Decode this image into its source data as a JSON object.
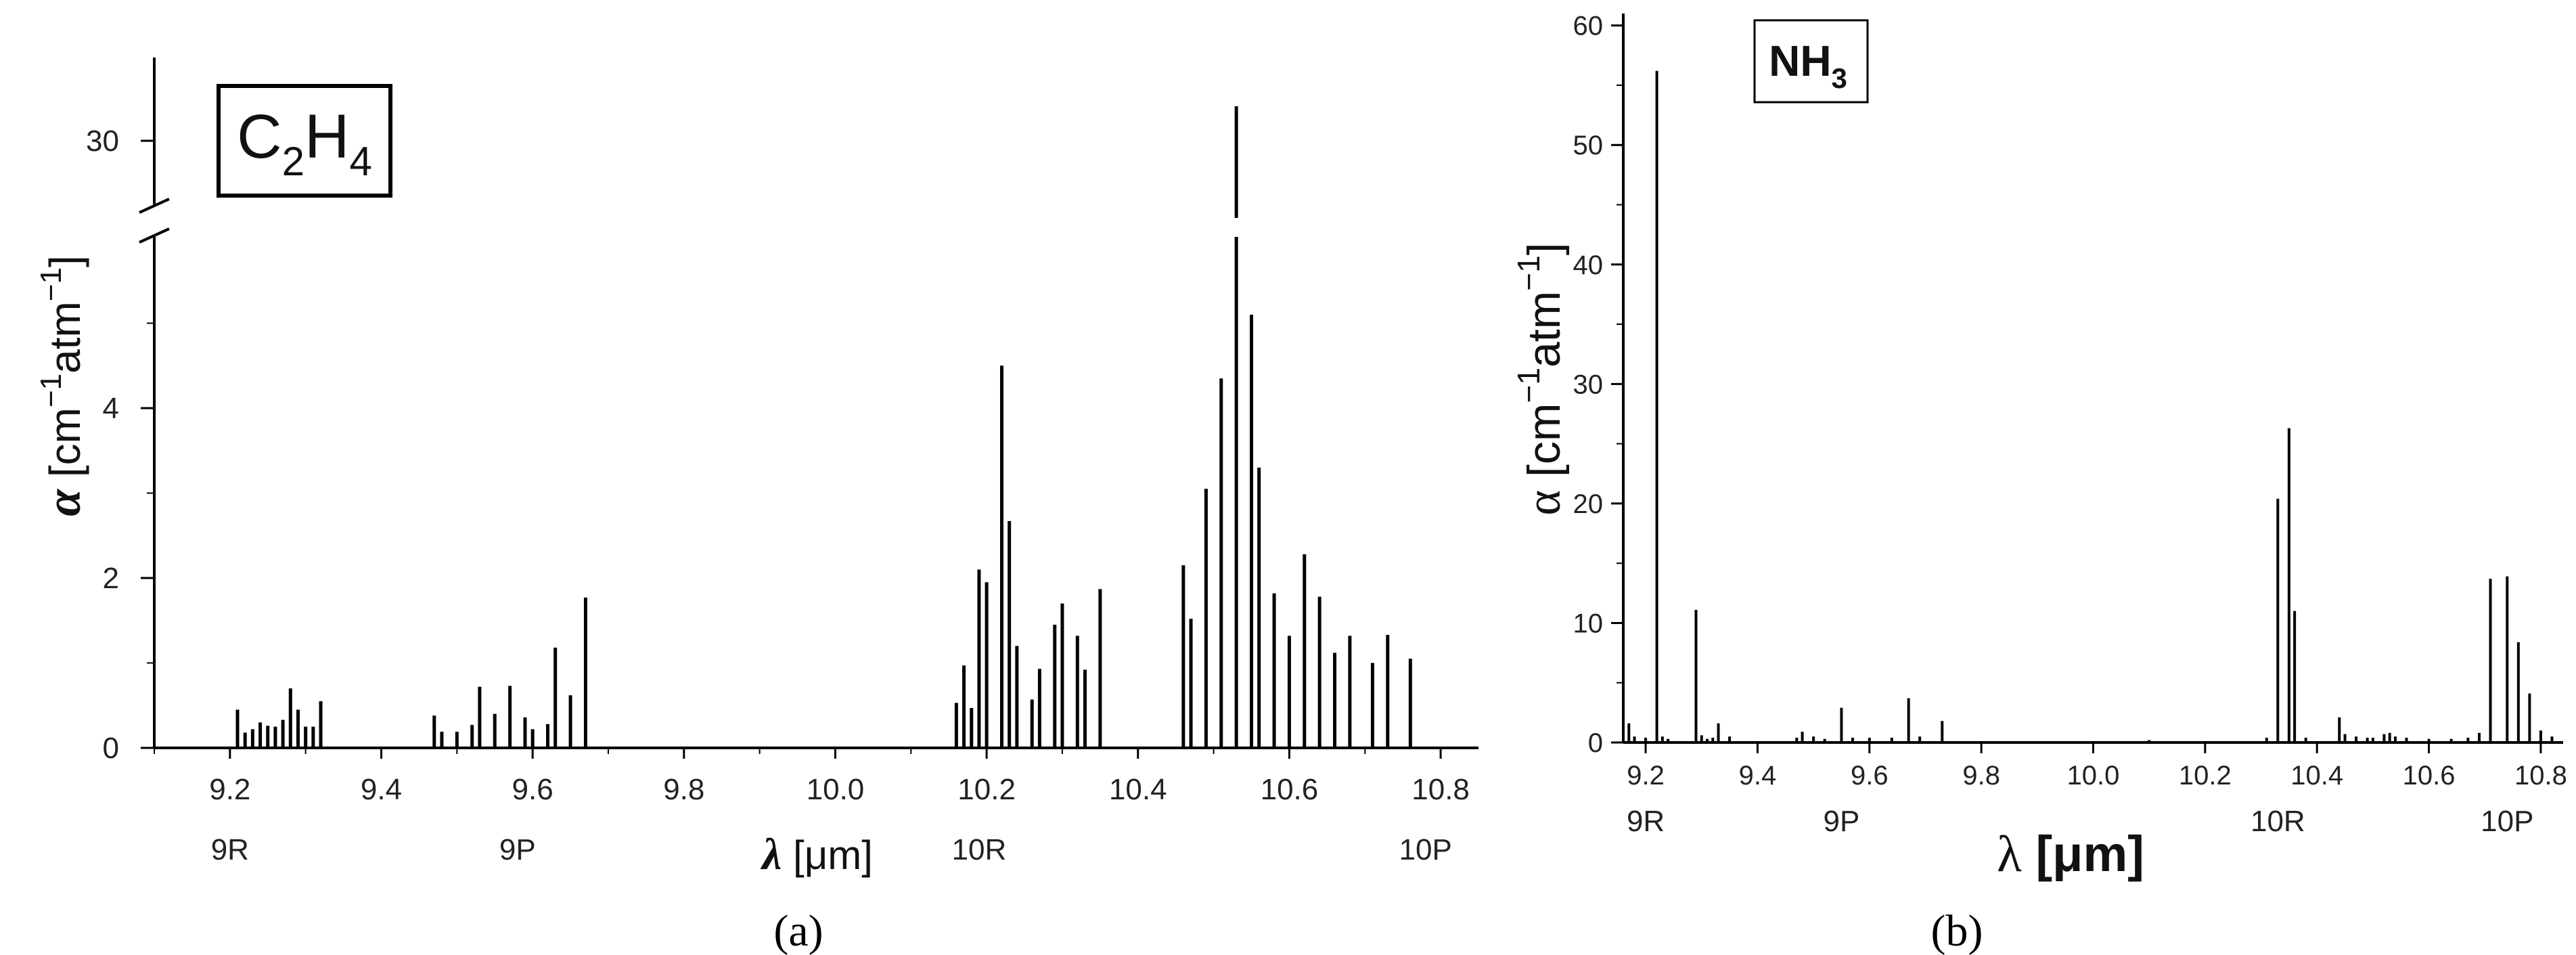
{
  "colors": {
    "axis": "#000000",
    "line": "#000000",
    "text": "#222222"
  },
  "chart_data": [
    {
      "type": "bar",
      "panel_label": "(a)",
      "legend": {
        "base": "C",
        "sub1": "2",
        "mid": "H",
        "sub2": "4"
      },
      "ylabel": {
        "symbol": "α",
        "text": " [cm",
        "sup1": "−1",
        "mid": "atm",
        "sup2": "−1",
        "close": "]"
      },
      "xlabel": {
        "symbol": "λ",
        "text": " [μm]"
      },
      "xlim": [
        9.1,
        10.85
      ],
      "ylim_lower": [
        0,
        5.8
      ],
      "ylim_upper": [
        29,
        34
      ],
      "axis_break": true,
      "xticks": [
        9.2,
        9.4,
        9.6,
        9.8,
        10.0,
        10.2,
        10.4,
        10.6,
        10.8
      ],
      "xtick_labels": [
        "9.2",
        "9.4",
        "9.6",
        "9.8",
        "10.0",
        "10.2",
        "10.4",
        "10.6",
        "10.8"
      ],
      "yticks": [
        0,
        2,
        4,
        30
      ],
      "ytick_labels": [
        "0",
        "2",
        "4",
        "30"
      ],
      "band_labels": [
        {
          "label": "9R",
          "x": 9.2
        },
        {
          "label": "9P",
          "x": 9.58
        },
        {
          "label": "10R",
          "x": 10.19
        },
        {
          "label": "10P",
          "x": 10.78
        }
      ],
      "lines": [
        {
          "x": 9.21,
          "y": 0.45
        },
        {
          "x": 9.22,
          "y": 0.18
        },
        {
          "x": 9.23,
          "y": 0.22
        },
        {
          "x": 9.24,
          "y": 0.3
        },
        {
          "x": 9.25,
          "y": 0.26
        },
        {
          "x": 9.26,
          "y": 0.25
        },
        {
          "x": 9.27,
          "y": 0.33
        },
        {
          "x": 9.28,
          "y": 0.7
        },
        {
          "x": 9.29,
          "y": 0.45
        },
        {
          "x": 9.3,
          "y": 0.25
        },
        {
          "x": 9.31,
          "y": 0.25
        },
        {
          "x": 9.32,
          "y": 0.55
        },
        {
          "x": 9.47,
          "y": 0.38
        },
        {
          "x": 9.48,
          "y": 0.19
        },
        {
          "x": 9.5,
          "y": 0.19
        },
        {
          "x": 9.52,
          "y": 0.27
        },
        {
          "x": 9.53,
          "y": 0.72
        },
        {
          "x": 9.55,
          "y": 0.4
        },
        {
          "x": 9.57,
          "y": 0.73
        },
        {
          "x": 9.59,
          "y": 0.36
        },
        {
          "x": 9.6,
          "y": 0.22
        },
        {
          "x": 9.62,
          "y": 0.28
        },
        {
          "x": 9.63,
          "y": 1.18
        },
        {
          "x": 9.65,
          "y": 0.62
        },
        {
          "x": 9.67,
          "y": 1.77
        },
        {
          "x": 10.16,
          "y": 0.53
        },
        {
          "x": 10.17,
          "y": 0.97
        },
        {
          "x": 10.18,
          "y": 0.47
        },
        {
          "x": 10.19,
          "y": 2.1
        },
        {
          "x": 10.2,
          "y": 1.95
        },
        {
          "x": 10.22,
          "y": 4.5
        },
        {
          "x": 10.23,
          "y": 2.67
        },
        {
          "x": 10.24,
          "y": 1.2
        },
        {
          "x": 10.26,
          "y": 0.57
        },
        {
          "x": 10.27,
          "y": 0.93
        },
        {
          "x": 10.29,
          "y": 1.45
        },
        {
          "x": 10.3,
          "y": 1.7
        },
        {
          "x": 10.32,
          "y": 1.32
        },
        {
          "x": 10.33,
          "y": 0.92
        },
        {
          "x": 10.35,
          "y": 1.87
        },
        {
          "x": 10.46,
          "y": 2.15
        },
        {
          "x": 10.47,
          "y": 1.52
        },
        {
          "x": 10.49,
          "y": 3.05
        },
        {
          "x": 10.51,
          "y": 4.35
        },
        {
          "x": 10.53,
          "y": 32.0
        },
        {
          "x": 10.55,
          "y": 5.1
        },
        {
          "x": 10.56,
          "y": 3.3
        },
        {
          "x": 10.58,
          "y": 1.82
        },
        {
          "x": 10.6,
          "y": 1.32
        },
        {
          "x": 10.62,
          "y": 2.28
        },
        {
          "x": 10.64,
          "y": 1.78
        },
        {
          "x": 10.66,
          "y": 1.12
        },
        {
          "x": 10.68,
          "y": 1.32
        },
        {
          "x": 10.71,
          "y": 1.0
        },
        {
          "x": 10.73,
          "y": 1.33
        },
        {
          "x": 10.76,
          "y": 1.05
        }
      ]
    },
    {
      "type": "bar",
      "panel_label": "(b)",
      "legend": {
        "base": "NH",
        "sub1": "3"
      },
      "ylabel": {
        "symbol": "α",
        "text": " [cm",
        "sup1": "−1",
        "mid": "atm",
        "sup2": "−1",
        "close": "]"
      },
      "xlabel": {
        "symbol": "λ",
        "text": " [μm]"
      },
      "xlim": [
        9.16,
        10.84
      ],
      "ylim": [
        0,
        61
      ],
      "xticks": [
        9.2,
        9.4,
        9.6,
        9.8,
        10.0,
        10.2,
        10.4,
        10.6,
        10.8
      ],
      "xtick_labels": [
        "9.2",
        "9.4",
        "9.6",
        "9.8",
        "10.0",
        "10.2",
        "10.4",
        "10.6",
        "10.8"
      ],
      "yticks": [
        0,
        10,
        20,
        30,
        40,
        50,
        60
      ],
      "ytick_labels": [
        "0",
        "10",
        "20",
        "30",
        "40",
        "50",
        "60"
      ],
      "band_labels": [
        {
          "label": "9R",
          "x": 9.2
        },
        {
          "label": "9P",
          "x": 9.55
        },
        {
          "label": "10R",
          "x": 10.33
        },
        {
          "label": "10P",
          "x": 10.74
        }
      ],
      "lines": [
        {
          "x": 9.17,
          "y": 1.6
        },
        {
          "x": 9.18,
          "y": 0.5
        },
        {
          "x": 9.2,
          "y": 0.4
        },
        {
          "x": 9.22,
          "y": 56.2
        },
        {
          "x": 9.23,
          "y": 0.5
        },
        {
          "x": 9.24,
          "y": 0.3
        },
        {
          "x": 9.29,
          "y": 11.1
        },
        {
          "x": 9.3,
          "y": 0.6
        },
        {
          "x": 9.31,
          "y": 0.3
        },
        {
          "x": 9.32,
          "y": 0.4
        },
        {
          "x": 9.33,
          "y": 1.6
        },
        {
          "x": 9.35,
          "y": 0.5
        },
        {
          "x": 9.47,
          "y": 0.4
        },
        {
          "x": 9.48,
          "y": 0.9
        },
        {
          "x": 9.5,
          "y": 0.5
        },
        {
          "x": 9.52,
          "y": 0.3
        },
        {
          "x": 9.55,
          "y": 2.9
        },
        {
          "x": 9.57,
          "y": 0.4
        },
        {
          "x": 9.6,
          "y": 0.4
        },
        {
          "x": 9.64,
          "y": 0.4
        },
        {
          "x": 9.67,
          "y": 3.7
        },
        {
          "x": 9.69,
          "y": 0.5
        },
        {
          "x": 9.73,
          "y": 1.8
        },
        {
          "x": 10.1,
          "y": 0.2
        },
        {
          "x": 10.31,
          "y": 0.4
        },
        {
          "x": 10.33,
          "y": 20.4
        },
        {
          "x": 10.35,
          "y": 26.3
        },
        {
          "x": 10.36,
          "y": 11.0
        },
        {
          "x": 10.38,
          "y": 0.4
        },
        {
          "x": 10.44,
          "y": 2.1
        },
        {
          "x": 10.45,
          "y": 0.7
        },
        {
          "x": 10.47,
          "y": 0.5
        },
        {
          "x": 10.49,
          "y": 0.4
        },
        {
          "x": 10.5,
          "y": 0.4
        },
        {
          "x": 10.52,
          "y": 0.7
        },
        {
          "x": 10.53,
          "y": 0.8
        },
        {
          "x": 10.54,
          "y": 0.5
        },
        {
          "x": 10.56,
          "y": 0.4
        },
        {
          "x": 10.6,
          "y": 0.3
        },
        {
          "x": 10.64,
          "y": 0.3
        },
        {
          "x": 10.67,
          "y": 0.4
        },
        {
          "x": 10.69,
          "y": 0.8
        },
        {
          "x": 10.71,
          "y": 13.7
        },
        {
          "x": 10.74,
          "y": 13.9
        },
        {
          "x": 10.76,
          "y": 8.4
        },
        {
          "x": 10.78,
          "y": 4.1
        },
        {
          "x": 10.8,
          "y": 1.0
        },
        {
          "x": 10.82,
          "y": 0.5
        }
      ]
    }
  ]
}
